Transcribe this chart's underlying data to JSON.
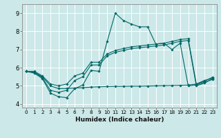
{
  "xlabel": "Humidex (Indice chaleur)",
  "xlim": [
    -0.5,
    23.5
  ],
  "ylim": [
    3.8,
    9.5
  ],
  "xticks": [
    0,
    1,
    2,
    3,
    4,
    5,
    6,
    7,
    8,
    9,
    10,
    11,
    12,
    13,
    14,
    15,
    16,
    17,
    18,
    19,
    20,
    21,
    22,
    23
  ],
  "yticks": [
    4,
    5,
    6,
    7,
    8,
    9
  ],
  "bg_color": "#cce8e8",
  "line_color": "#006666",
  "grid_color": "#ffffff",
  "lines": [
    {
      "x": [
        0,
        1,
        2,
        3,
        4,
        5,
        6,
        7,
        8,
        9,
        10,
        11,
        12,
        13,
        14,
        15,
        16,
        17,
        18,
        19,
        20,
        21,
        22,
        23
      ],
      "y": [
        5.8,
        5.7,
        5.4,
        4.6,
        4.4,
        4.35,
        4.85,
        5.05,
        5.85,
        5.8,
        7.45,
        9.0,
        8.6,
        8.4,
        8.25,
        8.25,
        7.3,
        7.35,
        7.0,
        7.35,
        5.0,
        5.05,
        5.2,
        5.35
      ]
    },
    {
      "x": [
        0,
        1,
        2,
        3,
        4,
        5,
        6,
        7,
        8,
        9,
        10,
        11,
        12,
        13,
        14,
        15,
        16,
        17,
        18,
        19,
        20,
        21,
        22,
        23
      ],
      "y": [
        5.8,
        5.75,
        5.45,
        4.75,
        4.65,
        4.75,
        5.3,
        5.5,
        6.15,
        6.15,
        6.65,
        6.85,
        6.95,
        7.05,
        7.1,
        7.15,
        7.2,
        7.25,
        7.35,
        7.45,
        7.5,
        5.0,
        5.15,
        5.4
      ]
    },
    {
      "x": [
        0,
        1,
        2,
        3,
        4,
        5,
        6,
        7,
        8,
        9,
        10,
        11,
        12,
        13,
        14,
        15,
        16,
        17,
        18,
        19,
        20,
        21,
        22,
        23
      ],
      "y": [
        5.8,
        5.8,
        5.55,
        5.1,
        5.0,
        5.1,
        5.55,
        5.7,
        6.3,
        6.3,
        6.75,
        6.95,
        7.05,
        7.15,
        7.2,
        7.25,
        7.3,
        7.35,
        7.45,
        7.55,
        7.6,
        5.1,
        5.25,
        5.48
      ]
    },
    {
      "x": [
        0,
        1,
        2,
        3,
        4,
        5,
        6,
        7,
        8,
        9,
        10,
        11,
        12,
        13,
        14,
        15,
        16,
        17,
        18,
        19,
        20,
        21,
        22,
        23
      ],
      "y": [
        5.8,
        5.75,
        5.5,
        5.0,
        4.85,
        4.85,
        4.88,
        4.9,
        4.93,
        4.95,
        4.96,
        4.97,
        4.97,
        4.98,
        4.98,
        4.99,
        5.0,
        5.01,
        5.02,
        5.03,
        5.04,
        5.1,
        5.3,
        5.42
      ]
    }
  ],
  "figsize": [
    3.2,
    2.0
  ],
  "dpi": 100
}
